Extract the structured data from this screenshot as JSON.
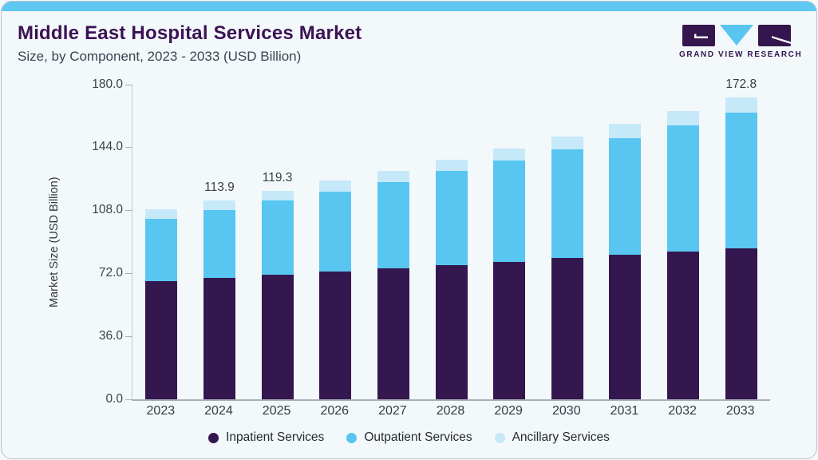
{
  "header": {
    "title": "Middle East Hospital Services Market",
    "subtitle": "Size, by Component, 2023 - 2033 (USD Billion)"
  },
  "logo": {
    "text": "GRAND VIEW RESEARCH"
  },
  "colors": {
    "accent_strip": "#5ec8f1",
    "title_purple": "#3b1253",
    "logo_purple": "#35154e",
    "logo_blue": "#58c6f1",
    "inpatient": "#34174f",
    "outpatient": "#58c6f1",
    "ancillary": "#c6e9fa"
  },
  "chart_data": {
    "type": "bar",
    "stacked": true,
    "title": "Middle East Hospital Services Market Size, by Component, 2023 - 2033 (USD Billion)",
    "categories": [
      "2023",
      "2024",
      "2025",
      "2026",
      "2027",
      "2028",
      "2029",
      "2030",
      "2031",
      "2032",
      "2033"
    ],
    "series": [
      {
        "name": "Inpatient Services",
        "color": "#34174f",
        "values": [
          67.5,
          69.6,
          71.3,
          72.9,
          75.0,
          76.7,
          78.7,
          80.7,
          82.8,
          84.3,
          86.2
        ]
      },
      {
        "name": "Outpatient Services",
        "color": "#58c6f1",
        "values": [
          35.8,
          38.8,
          42.4,
          45.9,
          49.5,
          53.8,
          57.7,
          62.1,
          66.8,
          72.5,
          77.9
        ]
      },
      {
        "name": "Ancillary Services",
        "color": "#c6e9fa",
        "values": [
          5.4,
          5.5,
          5.6,
          6.2,
          6.4,
          6.6,
          7.2,
          7.6,
          7.9,
          8.2,
          8.7
        ]
      }
    ],
    "totals": [
      108.7,
      113.9,
      119.3,
      125.0,
      130.9,
      137.1,
      143.6,
      150.4,
      157.5,
      165.0,
      172.8
    ],
    "data_labels": [
      null,
      "113.9",
      "119.3",
      null,
      null,
      null,
      null,
      null,
      null,
      null,
      "172.8"
    ],
    "ylabel": "Market Size (USD Billion)",
    "xlabel": "",
    "ylim": [
      0,
      180
    ],
    "yticks": [
      0,
      36,
      72,
      108,
      144,
      180
    ],
    "ytick_labels": [
      "0.0",
      "36.0",
      "72.0",
      "108.0",
      "144.0",
      "180.0"
    ],
    "grid": false,
    "legend_position": "bottom"
  }
}
